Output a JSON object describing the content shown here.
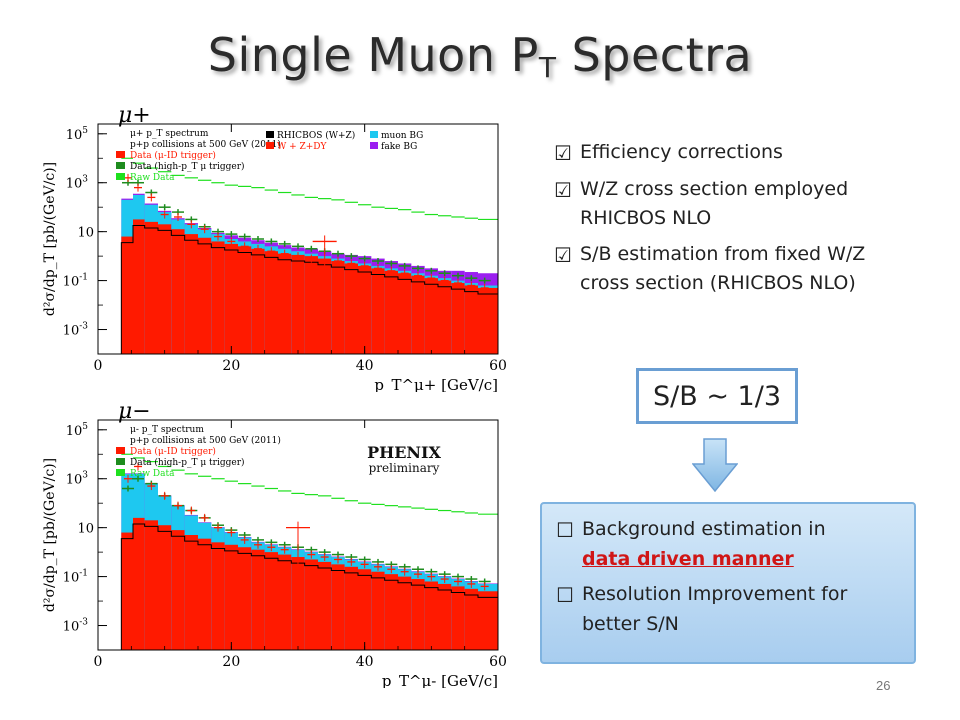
{
  "slide": {
    "title_main": "Single Muon P",
    "title_sub": "T",
    "title_tail": " Spectra",
    "page_number": "26"
  },
  "bullets_top": [
    {
      "mark": "☑",
      "lines": [
        "Efficiency corrections"
      ]
    },
    {
      "mark": "☑",
      "lines": [
        "W/Z cross section employed",
        "RHICBOS NLO"
      ]
    },
    {
      "mark": "☑",
      "lines": [
        "S/B estimation from fixed W/Z",
        "cross section (RHICBOS NLO)"
      ]
    }
  ],
  "sb_box": {
    "text": "S/B ~ 1/3"
  },
  "panel": {
    "item1_line1": "Background estimation in",
    "item1_line2": "data driven manner",
    "item2_line1": "Resolution Improvement for",
    "item2_line2": "better S/N",
    "mark": "☐"
  },
  "chart_data": [
    {
      "type": "bar",
      "particle_label": "μ+",
      "ylabel": "d²σ/dp_T [pb/(GeV/c)]",
      "xlabel": "p_T^μ+ [GeV/c]",
      "xlim": [
        0,
        60
      ],
      "ylim_log10": [
        -4,
        5.4
      ],
      "x_ticks": [
        0,
        20,
        40,
        60
      ],
      "y_ticks": [
        "10^-3",
        "10^-1",
        "10",
        "10^3",
        "10^5"
      ],
      "legend": {
        "left": [
          "μ+ p_T spectrum",
          "p+p collisions at 500 GeV (2011)",
          "Data (μ-ID trigger)",
          "Data (high-p_T μ trigger)",
          "Raw Data"
        ],
        "right": [
          "RHICBOS (W+Z)",
          "W + Z+DY",
          "muon BG",
          "fake BG"
        ]
      },
      "colors": {
        "wz": "#000000",
        "dy": "#ff1a00",
        "muonbg": "#1ec8f0",
        "fakebg": "#9b1ef0",
        "raw": "#1ee01e",
        "data_muid": "#ff1a00",
        "data_hpt": "#1e8c1e"
      },
      "bins_x": [
        4.5,
        6,
        8,
        10,
        12,
        14,
        16,
        18,
        20,
        22,
        24,
        26,
        28,
        30,
        32,
        34,
        36,
        38,
        40,
        42,
        44,
        46,
        48,
        50,
        52,
        54,
        56,
        58
      ],
      "dy_log": [
        0.8,
        1.5,
        1.4,
        1.3,
        1.1,
        0.9,
        0.75,
        0.6,
        0.5,
        0.4,
        0.3,
        0.2,
        0.1,
        0.05,
        0,
        -0.1,
        -0.2,
        -0.3,
        -0.4,
        -0.5,
        -0.6,
        -0.7,
        -0.8,
        -0.9,
        -1.0,
        -1.1,
        -1.2,
        -1.3
      ],
      "muonbg_log": [
        2.3,
        2.5,
        2.1,
        1.8,
        1.5,
        1.3,
        1.1,
        0.9,
        0.7,
        0.6,
        0.5,
        0.4,
        0.3,
        0.2,
        0.1,
        0,
        -0.1,
        -0.2,
        -0.3,
        -0.4,
        -0.5,
        -0.6,
        -0.7,
        -0.8,
        -0.9,
        -1.0,
        -1.1,
        -1.2
      ],
      "fakebg_log": [
        2.35,
        2.55,
        2.15,
        1.85,
        1.55,
        1.35,
        1.15,
        0.95,
        0.85,
        0.75,
        0.65,
        0.55,
        0.45,
        0.35,
        0.3,
        0.2,
        0.1,
        0.05,
        0,
        -0.1,
        -0.2,
        -0.3,
        -0.4,
        -0.5,
        -0.6,
        -0.6,
        -0.65,
        -0.7
      ],
      "raw_log": [
        4.0,
        3.8,
        3.6,
        3.45,
        3.3,
        3.2,
        3.1,
        3.0,
        2.9,
        2.85,
        2.8,
        2.7,
        2.6,
        2.5,
        2.4,
        2.35,
        2.3,
        2.2,
        2.1,
        2.0,
        1.95,
        1.9,
        1.8,
        1.7,
        1.65,
        1.6,
        1.55,
        1.5
      ],
      "data_muid_log": [
        3.2,
        2.8,
        2.4,
        1.7,
        1.6,
        1.3,
        1.1,
        0.8,
        0.6,
        0.4,
        0.3,
        0.2,
        0.1,
        0.0,
        -0.1,
        0.6,
        -0.2,
        -0.3,
        -0.4,
        -0.5,
        -0.6,
        -0.7,
        -0.8,
        -0.9,
        -1.0,
        -1.1,
        -1.2,
        -1.3
      ],
      "data_hpt_log": [
        3.0,
        3.0,
        2.6,
        2.0,
        1.8,
        1.5,
        1.2,
        1.0,
        0.9,
        0.8,
        0.7,
        0.6,
        0.5,
        0.4,
        0.3,
        0.2,
        0.1,
        0.0,
        -0.1,
        -0.2,
        -0.3,
        -0.4,
        -0.5,
        -0.6,
        -0.7,
        -0.8,
        -0.9,
        -1.0
      ]
    },
    {
      "type": "bar",
      "particle_label": "μ−",
      "ylabel": "d²σ/dp_T [pb/(GeV/c)]",
      "xlabel": "p_T^μ- [GeV/c]",
      "xlim": [
        0,
        60
      ],
      "ylim_log10": [
        -4,
        5.4
      ],
      "x_ticks": [
        0,
        20,
        40,
        60
      ],
      "y_ticks": [
        "10^-3",
        "10^-1",
        "10",
        "10^3",
        "10^5"
      ],
      "legend": {
        "left": [
          "μ- p_T spectrum",
          "p+p collisions at 500 GeV (2011)",
          "Data (μ-ID trigger)",
          "Data (high-p_T μ trigger)",
          "Raw Data"
        ],
        "right": []
      },
      "logo": {
        "name": "PHENIX",
        "sub": "preliminary"
      },
      "colors": {
        "wz": "#000000",
        "dy": "#ff1a00",
        "muonbg": "#1ec8f0",
        "fakebg": "#9b1ef0",
        "raw": "#1ee01e",
        "data_muid": "#ff1a00",
        "data_hpt": "#1e8c1e"
      },
      "bins_x": [
        4.5,
        6,
        8,
        10,
        12,
        14,
        16,
        18,
        20,
        22,
        24,
        26,
        28,
        30,
        32,
        34,
        36,
        38,
        40,
        42,
        44,
        46,
        48,
        50,
        52,
        54,
        56,
        58
      ],
      "dy_log": [
        0.8,
        1.4,
        1.3,
        1.1,
        0.9,
        0.7,
        0.55,
        0.4,
        0.3,
        0.2,
        0.1,
        0.0,
        -0.1,
        -0.2,
        -0.3,
        -0.4,
        -0.5,
        -0.6,
        -0.7,
        -0.8,
        -0.9,
        -1.0,
        -1.1,
        -1.2,
        -1.3,
        -1.4,
        -1.5,
        -1.6
      ],
      "muonbg_log": [
        3.2,
        3.2,
        2.8,
        2.3,
        1.9,
        1.5,
        1.2,
        1.0,
        0.8,
        0.6,
        0.4,
        0.3,
        0.2,
        0.1,
        0.0,
        -0.1,
        -0.2,
        -0.3,
        -0.4,
        -0.5,
        -0.6,
        -0.7,
        -0.8,
        -0.9,
        -1.0,
        -1.1,
        -1.2,
        -1.3
      ],
      "fakebg_log": [
        3.22,
        3.22,
        2.82,
        2.32,
        1.92,
        1.52,
        1.22,
        1.02,
        0.82,
        0.62,
        0.42,
        0.32,
        0.22,
        0.12,
        0.02,
        -0.08,
        -0.18,
        -0.28,
        -0.38,
        -0.48,
        -0.58,
        -0.68,
        -0.78,
        -0.88,
        -0.98,
        -1.08,
        -1.18,
        -1.28
      ],
      "raw_log": [
        4.0,
        3.85,
        3.7,
        3.5,
        3.35,
        3.2,
        3.1,
        3.0,
        2.9,
        2.8,
        2.7,
        2.6,
        2.5,
        2.4,
        2.35,
        2.3,
        2.2,
        2.1,
        2.0,
        1.95,
        1.9,
        1.85,
        1.8,
        1.75,
        1.7,
        1.65,
        1.6,
        1.55
      ],
      "data_muid_log": [
        3.0,
        3.5,
        2.7,
        2.3,
        1.9,
        1.7,
        1.4,
        1.0,
        0.8,
        0.5,
        0.3,
        0.2,
        0.1,
        1.0,
        -0.1,
        -0.2,
        -0.3,
        -0.4,
        -0.5,
        -0.6,
        -0.7,
        -0.8,
        -0.9,
        -1.0,
        -1.1,
        -1.2,
        -1.3,
        -1.4
      ],
      "data_hpt_log": [
        2.6,
        3.0,
        2.8,
        2.3,
        1.9,
        1.7,
        1.4,
        1.1,
        0.9,
        0.7,
        0.5,
        0.4,
        0.3,
        0.2,
        0.1,
        0.0,
        -0.1,
        -0.2,
        -0.3,
        -0.4,
        -0.5,
        -0.6,
        -0.7,
        -0.8,
        -0.9,
        -1.0,
        -1.1,
        -1.2
      ]
    }
  ]
}
